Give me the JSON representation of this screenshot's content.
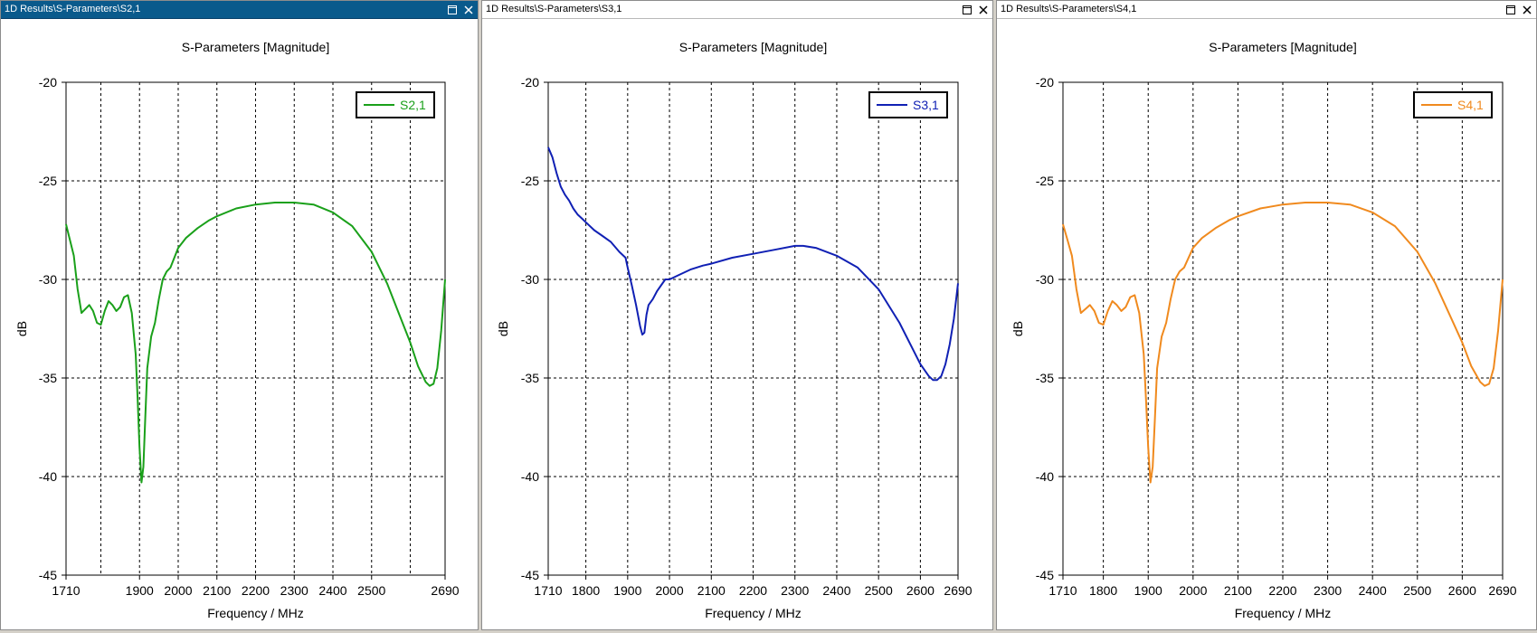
{
  "panels": [
    {
      "window_title": "1D Results\\S-Parameters\\S2,1",
      "active": true,
      "chart_data": {
        "type": "line",
        "title": "S-Parameters [Magnitude]",
        "xlabel": "Frequency / MHz",
        "ylabel": "dB",
        "xlim": [
          1710,
          2690
        ],
        "ylim": [
          -45,
          -20
        ],
        "xticks": [
          1710,
          1900,
          2000,
          2100,
          2200,
          2300,
          2400,
          2500,
          2690
        ],
        "yticks": [
          -20,
          -25,
          -30,
          -35,
          -40,
          -45
        ],
        "xgrid": [
          1710,
          1800,
          1900,
          2000,
          2100,
          2200,
          2300,
          2400,
          2500,
          2600,
          2690
        ],
        "grid": true,
        "legend_position": "top-right",
        "series": [
          {
            "name": "S2,1",
            "color": "#1aa01a",
            "x": [
              1710,
              1720,
              1730,
              1740,
              1750,
              1760,
              1770,
              1780,
              1790,
              1800,
              1810,
              1820,
              1830,
              1840,
              1850,
              1860,
              1870,
              1880,
              1890,
              1895,
              1900,
              1905,
              1910,
              1915,
              1920,
              1930,
              1940,
              1950,
              1960,
              1970,
              1980,
              2000,
              2020,
              2050,
              2080,
              2100,
              2150,
              2200,
              2250,
              2300,
              2350,
              2400,
              2450,
              2500,
              2540,
              2570,
              2600,
              2620,
              2640,
              2650,
              2660,
              2670,
              2680,
              2690
            ],
            "y": [
              -27.2,
              -28.0,
              -28.8,
              -30.5,
              -31.7,
              -31.5,
              -31.3,
              -31.6,
              -32.2,
              -32.3,
              -31.6,
              -31.1,
              -31.3,
              -31.6,
              -31.4,
              -30.9,
              -30.8,
              -31.7,
              -33.8,
              -36.0,
              -38.5,
              -40.3,
              -39.5,
              -37.0,
              -34.5,
              -32.9,
              -32.2,
              -31.0,
              -30.0,
              -29.6,
              -29.4,
              -28.4,
              -27.9,
              -27.4,
              -27.0,
              -26.8,
              -26.4,
              -26.2,
              -26.1,
              -26.1,
              -26.2,
              -26.6,
              -27.3,
              -28.6,
              -30.2,
              -31.7,
              -33.2,
              -34.4,
              -35.2,
              -35.4,
              -35.3,
              -34.5,
              -32.6,
              -30.0
            ]
          }
        ]
      }
    },
    {
      "window_title": "1D Results\\S-Parameters\\S3,1",
      "active": false,
      "chart_data": {
        "type": "line",
        "title": "S-Parameters [Magnitude]",
        "xlabel": "Frequency / MHz",
        "ylabel": "dB",
        "xlim": [
          1710,
          2690
        ],
        "ylim": [
          -45,
          -20
        ],
        "xticks": [
          1710,
          1800,
          1900,
          2000,
          2100,
          2200,
          2300,
          2400,
          2500,
          2600,
          2690
        ],
        "yticks": [
          -20,
          -25,
          -30,
          -35,
          -40,
          -45
        ],
        "xgrid": [
          1710,
          1800,
          1900,
          2000,
          2100,
          2200,
          2300,
          2400,
          2500,
          2600,
          2690
        ],
        "grid": true,
        "legend_position": "top-right",
        "series": [
          {
            "name": "S3,1",
            "color": "#1020b4",
            "x": [
              1710,
              1720,
              1730,
              1740,
              1750,
              1760,
              1770,
              1780,
              1790,
              1800,
              1820,
              1840,
              1860,
              1880,
              1895,
              1900,
              1910,
              1920,
              1930,
              1935,
              1940,
              1945,
              1950,
              1960,
              1970,
              1980,
              1990,
              2000,
              2020,
              2050,
              2080,
              2100,
              2150,
              2200,
              2250,
              2300,
              2320,
              2350,
              2400,
              2450,
              2500,
              2550,
              2600,
              2620,
              2630,
              2640,
              2650,
              2660,
              2670,
              2680,
              2690
            ],
            "y": [
              -23.3,
              -23.8,
              -24.6,
              -25.3,
              -25.7,
              -26.0,
              -26.4,
              -26.7,
              -26.9,
              -27.1,
              -27.5,
              -27.8,
              -28.1,
              -28.6,
              -28.9,
              -29.4,
              -30.3,
              -31.3,
              -32.4,
              -32.8,
              -32.7,
              -31.8,
              -31.3,
              -31.0,
              -30.6,
              -30.3,
              -30.0,
              -30.0,
              -29.8,
              -29.5,
              -29.3,
              -29.2,
              -28.9,
              -28.7,
              -28.5,
              -28.3,
              -28.3,
              -28.4,
              -28.8,
              -29.4,
              -30.5,
              -32.2,
              -34.3,
              -34.9,
              -35.1,
              -35.1,
              -34.9,
              -34.3,
              -33.3,
              -32.0,
              -30.2
            ]
          }
        ]
      }
    },
    {
      "window_title": "1D Results\\S-Parameters\\S4,1",
      "active": false,
      "chart_data": {
        "type": "line",
        "title": "S-Parameters [Magnitude]",
        "xlabel": "Frequency / MHz",
        "ylabel": "dB",
        "xlim": [
          1710,
          2690
        ],
        "ylim": [
          -45,
          -20
        ],
        "xticks": [
          1710,
          1800,
          1900,
          2000,
          2100,
          2200,
          2300,
          2400,
          2500,
          2600,
          2690
        ],
        "yticks": [
          -20,
          -25,
          -30,
          -35,
          -40,
          -45
        ],
        "xgrid": [
          1710,
          1800,
          1900,
          2000,
          2100,
          2200,
          2300,
          2400,
          2500,
          2600,
          2690
        ],
        "grid": true,
        "legend_position": "top-right",
        "series": [
          {
            "name": "S4,1",
            "color": "#f08a1e",
            "x": [
              1710,
              1720,
              1730,
              1740,
              1750,
              1760,
              1770,
              1780,
              1790,
              1800,
              1810,
              1820,
              1830,
              1840,
              1850,
              1860,
              1870,
              1880,
              1890,
              1895,
              1900,
              1905,
              1910,
              1915,
              1920,
              1930,
              1940,
              1950,
              1960,
              1970,
              1980,
              2000,
              2020,
              2050,
              2080,
              2100,
              2150,
              2200,
              2250,
              2300,
              2350,
              2400,
              2450,
              2500,
              2540,
              2570,
              2600,
              2620,
              2640,
              2650,
              2660,
              2670,
              2680,
              2690
            ],
            "y": [
              -27.2,
              -28.0,
              -28.8,
              -30.5,
              -31.7,
              -31.5,
              -31.3,
              -31.6,
              -32.2,
              -32.3,
              -31.6,
              -31.1,
              -31.3,
              -31.6,
              -31.4,
              -30.9,
              -30.8,
              -31.7,
              -33.8,
              -36.0,
              -38.5,
              -40.3,
              -39.5,
              -37.0,
              -34.5,
              -32.9,
              -32.2,
              -31.0,
              -30.0,
              -29.6,
              -29.4,
              -28.4,
              -27.9,
              -27.4,
              -27.0,
              -26.8,
              -26.4,
              -26.2,
              -26.1,
              -26.1,
              -26.2,
              -26.6,
              -27.3,
              -28.6,
              -30.2,
              -31.7,
              -33.2,
              -34.4,
              -35.2,
              -35.4,
              -35.3,
              -34.5,
              -32.6,
              -30.0
            ]
          }
        ]
      }
    }
  ]
}
